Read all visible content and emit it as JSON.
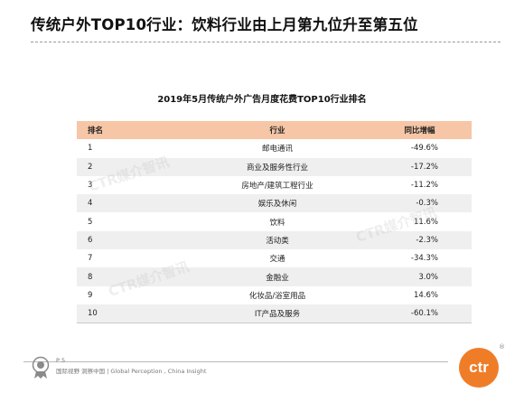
{
  "slide": {
    "title": "传统户外TOP10行业：饮料行业由上月第九位升至第五位"
  },
  "table": {
    "title": "2019年5月传统户外广告月度花费TOP10行业排名",
    "headers": [
      "排名",
      "行业",
      "同比增幅"
    ],
    "rows": [
      {
        "rank": "1",
        "industry": "邮电通讯",
        "change": "-49.6%"
      },
      {
        "rank": "2",
        "industry": "商业及服务性行业",
        "change": "-17.2%"
      },
      {
        "rank": "3",
        "industry": "房地产/建筑工程行业",
        "change": "-11.2%"
      },
      {
        "rank": "4",
        "industry": "娱乐及休闲",
        "change": "-0.3%"
      },
      {
        "rank": "5",
        "industry": "饮料",
        "change": "11.6%"
      },
      {
        "rank": "6",
        "industry": "活动类",
        "change": "-2.3%"
      },
      {
        "rank": "7",
        "industry": "交通",
        "change": "-34.3%"
      },
      {
        "rank": "8",
        "industry": "金融业",
        "change": "3.0%"
      },
      {
        "rank": "9",
        "industry": "化妆品/浴室用品",
        "change": "14.6%"
      },
      {
        "rank": "10",
        "industry": "IT产品及服务",
        "change": "-60.1%"
      }
    ]
  },
  "watermark": {
    "text": "CTR媒介智讯"
  },
  "footer": {
    "page": "P 5",
    "slogan": "国际视野 洞察中国 | Global Perception , China Insight",
    "logo_text": "ctr",
    "logo_mark": "®",
    "seal_icon": "certification-seal-icon"
  },
  "colors": {
    "header_bg": "#f6c6a6",
    "stripe_bg": "#efefef",
    "brand_orange": "#ef7d28"
  }
}
